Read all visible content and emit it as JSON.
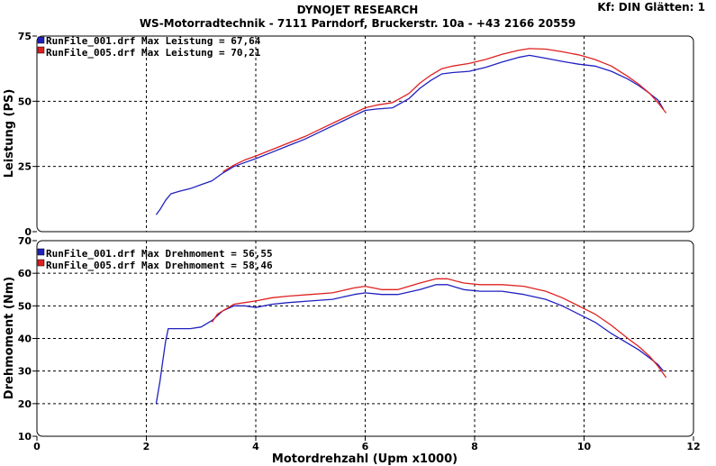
{
  "header": {
    "title": "DYNOJET RESEARCH",
    "subtitle": "WS-Motorradtechnik - 7111 Parndorf, Bruckerstr. 10a - +43 2166 20559",
    "corner": "Kf: DIN  Glätten: 1"
  },
  "xlabel": "Motordrehzahl (Upm x1000)",
  "colors": {
    "run1": "#2020c0",
    "run2": "#e02020",
    "grid": "#000000",
    "frame": "#000000"
  },
  "chart_data": [
    {
      "type": "line",
      "ylabel": "Leistung (PS)",
      "xlim": [
        0,
        12
      ],
      "ylim": [
        0,
        75
      ],
      "xticks": [
        0,
        2,
        4,
        6,
        8,
        10,
        12
      ],
      "yticks": [
        0,
        25,
        50,
        75
      ],
      "grid": true,
      "legend_position": "top-left",
      "series": [
        {
          "name": "RunFile_001.drf",
          "legend": "RunFile_001.drf Max Leistung = 67,64",
          "color": "#2020c0",
          "x": [
            2.18,
            2.25,
            2.35,
            2.45,
            2.6,
            2.8,
            3.0,
            3.2,
            3.4,
            3.6,
            3.8,
            4.0,
            4.3,
            4.6,
            4.9,
            5.2,
            5.5,
            5.8,
            6.0,
            6.2,
            6.5,
            6.8,
            7.0,
            7.2,
            7.4,
            7.6,
            7.9,
            8.2,
            8.5,
            8.8,
            9.0,
            9.3,
            9.6,
            9.9,
            10.2,
            10.5,
            10.8,
            11.0,
            11.2,
            11.35,
            11.45
          ],
          "y": [
            6.5,
            8.5,
            12,
            14.5,
            15.5,
            16.5,
            18,
            19.5,
            22.5,
            25,
            26.5,
            28,
            30.5,
            33,
            35.5,
            38.5,
            41.5,
            44.5,
            46.5,
            47,
            47.5,
            51,
            55,
            58,
            60.5,
            61,
            61.5,
            63,
            65,
            66.8,
            67.6,
            66.5,
            65.3,
            64.2,
            63.5,
            61.5,
            58.5,
            56,
            53,
            50.5,
            47
          ]
        },
        {
          "name": "RunFile_005.drf",
          "legend": "RunFile_005.drf Max Leistung = 70,21",
          "color": "#e02020",
          "x": [
            3.4,
            3.6,
            3.8,
            4.0,
            4.3,
            4.6,
            4.9,
            5.2,
            5.5,
            5.8,
            6.0,
            6.2,
            6.5,
            6.8,
            7.0,
            7.2,
            7.4,
            7.6,
            7.9,
            8.2,
            8.5,
            8.8,
            9.0,
            9.3,
            9.6,
            9.9,
            10.2,
            10.5,
            10.8,
            11.0,
            11.2,
            11.35,
            11.5
          ],
          "y": [
            23,
            25.5,
            27.5,
            29,
            31.5,
            34,
            36.5,
            39.5,
            42.5,
            45.5,
            47.5,
            48.5,
            49.5,
            53,
            57,
            60,
            62.5,
            63.5,
            64.5,
            66,
            68,
            69.5,
            70.2,
            70,
            69,
            67.8,
            66,
            63.5,
            59.5,
            56.5,
            53,
            49.5,
            45.5
          ]
        }
      ]
    },
    {
      "type": "line",
      "ylabel": "Drehmoment (Nm)",
      "xlim": [
        0,
        12
      ],
      "ylim": [
        10,
        70
      ],
      "xticks": [
        0,
        2,
        4,
        6,
        8,
        10,
        12
      ],
      "yticks": [
        10,
        20,
        30,
        40,
        50,
        60,
        70
      ],
      "grid": true,
      "legend_position": "top-left",
      "series": [
        {
          "name": "RunFile_001.drf",
          "legend": "RunFile_001.drf Max Drehmoment = 56,55",
          "color": "#2020c0",
          "x": [
            2.18,
            2.25,
            2.3,
            2.35,
            2.4,
            2.5,
            2.8,
            3.0,
            3.2,
            3.4,
            3.6,
            3.8,
            4.0,
            4.3,
            4.6,
            5.0,
            5.4,
            5.8,
            6.0,
            6.3,
            6.6,
            7.0,
            7.3,
            7.5,
            7.8,
            8.1,
            8.5,
            8.9,
            9.3,
            9.6,
            9.9,
            10.2,
            10.5,
            10.8,
            11.0,
            11.2,
            11.35,
            11.45
          ],
          "y": [
            20,
            27,
            33,
            39,
            43,
            43,
            43,
            43.5,
            45.5,
            48.5,
            50,
            50,
            49.5,
            50.5,
            51,
            51.5,
            52,
            53.5,
            54,
            53.5,
            53.5,
            55,
            56.5,
            56.5,
            55,
            54.5,
            54.5,
            53.5,
            52,
            50,
            47.5,
            45,
            41.5,
            38.5,
            36.5,
            34,
            32,
            30
          ]
        },
        {
          "name": "RunFile_005.drf",
          "legend": "RunFile_005.drf Max Drehmoment = 58,46",
          "color": "#e02020",
          "x": [
            3.2,
            3.3,
            3.4,
            3.6,
            3.8,
            4.0,
            4.3,
            4.6,
            5.0,
            5.4,
            5.8,
            6.0,
            6.3,
            6.6,
            7.0,
            7.3,
            7.5,
            7.8,
            8.1,
            8.5,
            8.9,
            9.3,
            9.6,
            9.9,
            10.2,
            10.5,
            10.8,
            11.0,
            11.2,
            11.35,
            11.5
          ],
          "y": [
            45,
            47.5,
            48.5,
            50.5,
            51,
            51.5,
            52.5,
            53,
            53.5,
            54,
            55.5,
            56,
            55,
            55,
            57,
            58.3,
            58.3,
            57,
            56.5,
            56.5,
            56,
            54.5,
            52.5,
            50,
            47.5,
            44,
            40,
            37.5,
            34.5,
            31.5,
            28
          ]
        }
      ]
    }
  ]
}
